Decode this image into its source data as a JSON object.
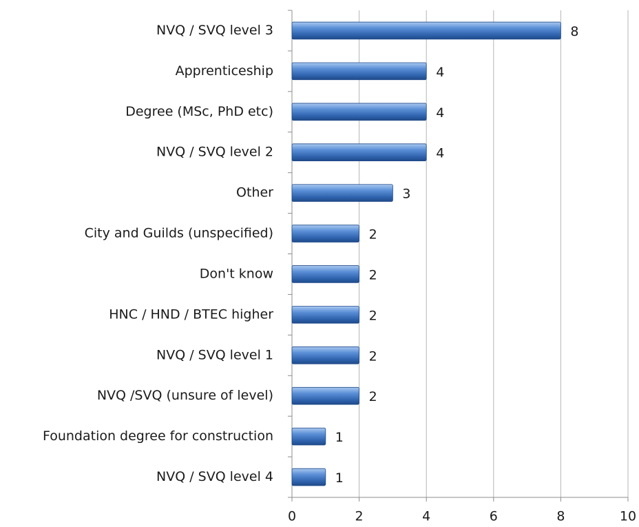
{
  "chart_data": {
    "type": "bar",
    "orientation": "horizontal",
    "categories": [
      "NVQ / SVQ level 3",
      "Apprenticeship",
      "Degree (MSc, PhD etc)",
      "NVQ / SVQ level 2",
      "Other",
      "City and Guilds (unspecified)",
      "Don't know",
      "HNC / HND / BTEC higher",
      "NVQ / SVQ level 1",
      "NVQ /SVQ (unsure of level)",
      "Foundation degree for construction",
      "NVQ / SVQ level 4"
    ],
    "values": [
      8,
      4,
      4,
      4,
      3,
      2,
      2,
      2,
      2,
      2,
      1,
      1
    ],
    "color": "#4a7fc8",
    "xlim": [
      0,
      10
    ],
    "xticks": [
      0,
      2,
      4,
      6,
      8,
      10
    ],
    "grid": true
  }
}
